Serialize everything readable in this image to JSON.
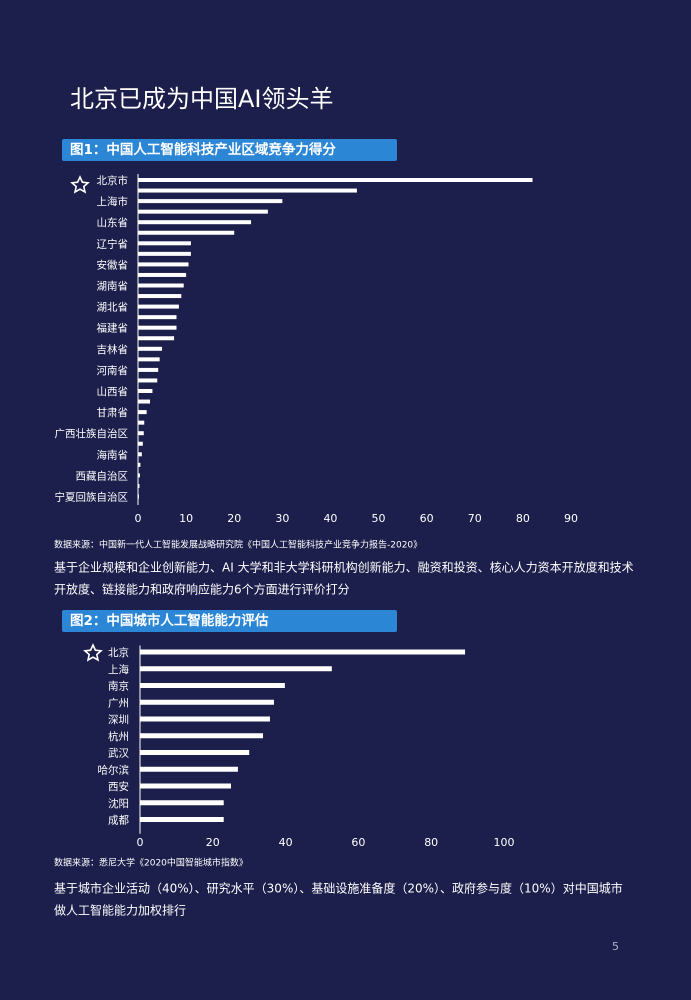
{
  "title": "北京已成为中国AI领头羊",
  "page_number": "5",
  "chart_data": [
    {
      "type": "hbar",
      "title": "图1：中国人工智能科技产业区域竞争力得分",
      "categories": [
        "北京市",
        null,
        "上海市",
        null,
        "山东省",
        null,
        "辽宁省",
        null,
        "安徽省",
        null,
        "湖南省",
        null,
        "湖北省",
        null,
        "福建省",
        null,
        "吉林省",
        null,
        "河南省",
        null,
        "山西省",
        null,
        "甘肃省",
        null,
        "广西壮族自治区",
        null,
        "海南省",
        null,
        "西藏自治区",
        null,
        "宁夏回族自治区"
      ],
      "values": [
        82,
        45.5,
        30,
        27,
        23.5,
        20,
        11,
        11,
        10.5,
        10,
        9.5,
        9,
        8.5,
        8,
        8,
        7.5,
        5,
        4.5,
        4.2,
        4,
        3,
        2.5,
        1.8,
        1.3,
        1.2,
        1,
        0.8,
        0.5,
        0.4,
        0.3,
        0.2
      ],
      "color": "#ffffff",
      "xlim": [
        0,
        90
      ],
      "xticks": [
        0,
        10,
        20,
        30,
        40,
        50,
        60,
        70,
        80,
        90
      ],
      "source": "数据来源：中国新一代人工智能发展战略研究院《中国人工智能科技产业竞争力报告-2020》",
      "note": [
        "基于企业规模和企业创新能力、AI 大学和非大学科研机构创新能力、融资和投资、核心人力资本开放度和技术",
        "开放度、链接能力和政府响应能力6个方面进行评价打分"
      ]
    },
    {
      "type": "hbar",
      "title": "图2：中国城市人工智能能力评估",
      "categories": [
        "北京",
        "上海",
        "南京",
        "广州",
        "深圳",
        "杭州",
        "武汉",
        "哈尔滨",
        "西安",
        "沈阳",
        "成都"
      ],
      "values": [
        89.3,
        52.7,
        39.8,
        36.8,
        35.7,
        33.8,
        30,
        26.9,
        25,
        23,
        23
      ],
      "color": "#ffffff",
      "xlim": [
        0,
        100
      ],
      "xticks": [
        0,
        20,
        40,
        60,
        80,
        100
      ],
      "source": "数据来源：悉尼大学《2020中国智能城市指数》",
      "note": [
        "基于城市企业活动（40%）、研究水平（30%）、基础设施准备度（20%）、政府参与度（10%）对中国城市",
        "做人工智能能力加权排行"
      ]
    }
  ]
}
